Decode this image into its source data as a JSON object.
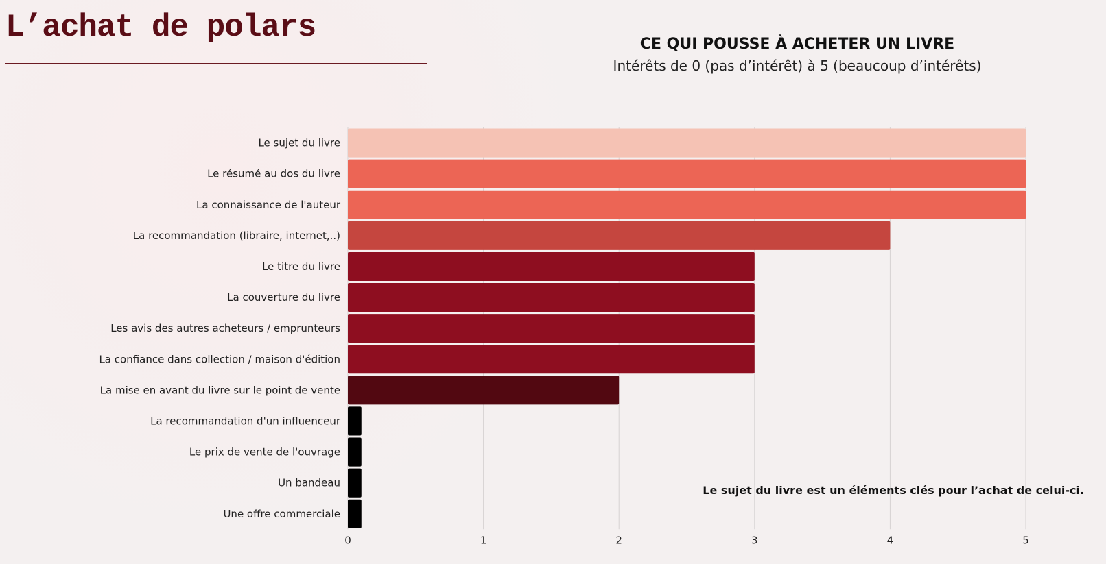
{
  "page": {
    "title": "L’achat de polars"
  },
  "chart_data": {
    "type": "bar",
    "orientation": "horizontal",
    "title": "CE QUI POUSSE À ACHETER UN LIVRE",
    "subtitle": "Intérêts de 0 (pas d’intérêt) à 5 (beaucoup d’intérêts)",
    "categories": [
      "Le sujet du livre",
      "Le résumé au dos du livre",
      "La connaissance de l'auteur",
      "La recommandation (libraire, internet,..)",
      "Le titre du livre",
      "La couverture du livre",
      "Les avis des autres acheteurs / emprunteurs",
      "La confiance dans collection / maison d'édition",
      "La mise en avant du livre sur le point de vente",
      "La recommandation d'un influenceur",
      "Le prix de vente de l'ouvrage",
      "Un bandeau",
      "Une offre commerciale"
    ],
    "values": [
      5,
      5,
      5,
      4,
      3,
      3,
      3,
      3,
      2,
      0.1,
      0.1,
      0.1,
      0.1
    ],
    "colors": [
      "#F5C2B4",
      "#EC6555",
      "#EC6555",
      "#C5463F",
      "#8E0E20",
      "#8E0E20",
      "#8E0E20",
      "#8E0E20",
      "#520811",
      "#000000",
      "#000000",
      "#000000",
      "#000000"
    ],
    "xlim": [
      0,
      5
    ],
    "xticks": [
      "0",
      "1",
      "2",
      "3",
      "4",
      "5"
    ],
    "grid": true,
    "annotation": "Le sujet du livre est un éléments clés pour l’achat de celui-ci."
  }
}
